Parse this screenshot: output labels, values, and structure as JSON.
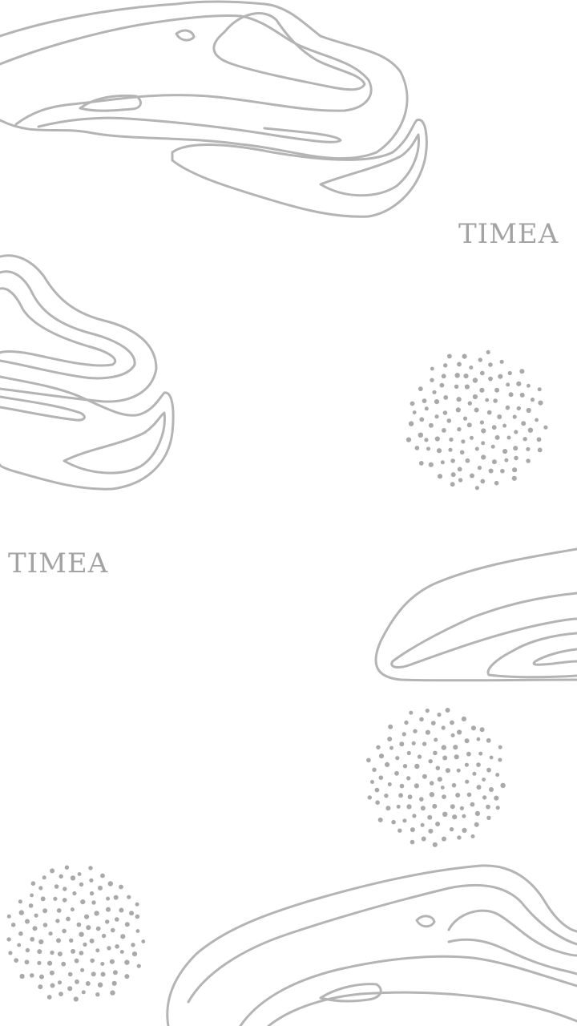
{
  "watermarks": [
    "TIMEA",
    "TIMEA"
  ],
  "colors": {
    "background": "#ffffff",
    "line_art": "#b4b4b4",
    "dots": "#a9a9a9",
    "watermark_text": "#a3a3a3"
  },
  "decorations": {
    "topographic_line_groups": 4,
    "dot_clusters": 3
  }
}
